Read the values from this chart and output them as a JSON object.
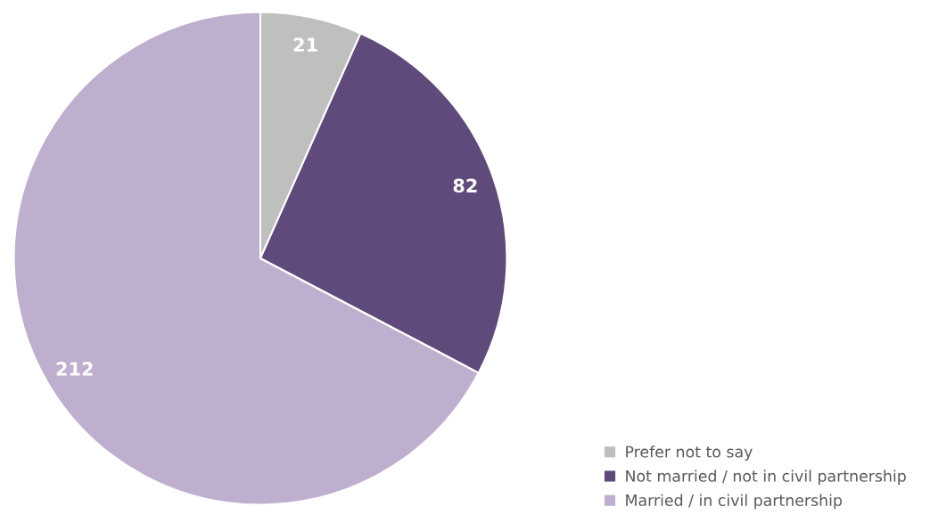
{
  "chart_data": {
    "type": "pie",
    "categories": [
      "Prefer not to say",
      "Not married / not in civil partnership",
      "Married / in civil partnership"
    ],
    "values": [
      21,
      82,
      212
    ],
    "colors": [
      "#bfbfbf",
      "#604a7b",
      "#bfafce"
    ],
    "data_labels": true,
    "legend": "bottom right"
  }
}
